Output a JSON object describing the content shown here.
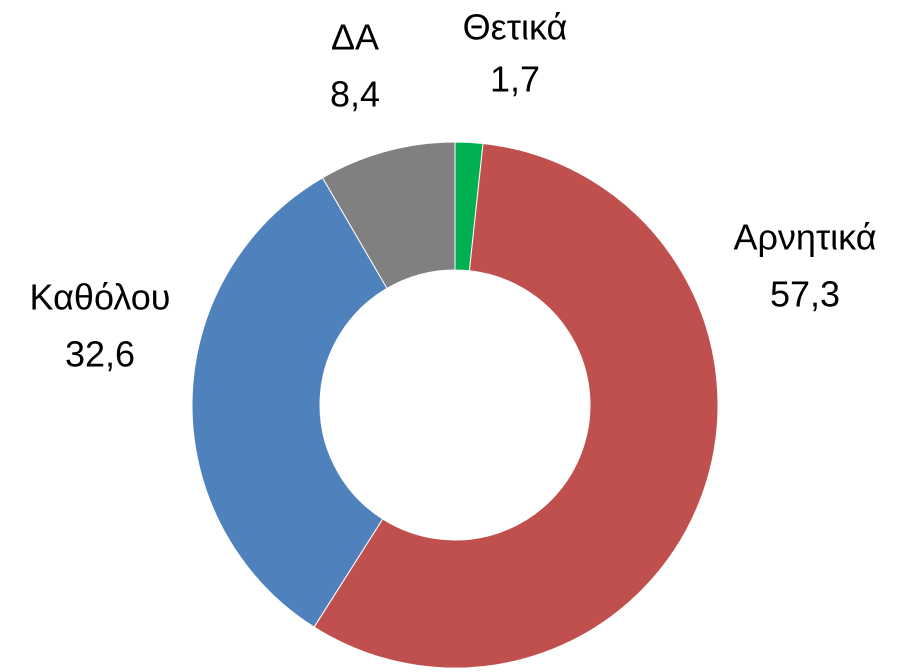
{
  "chart_data": {
    "type": "donut",
    "categories": [
      "Θετικά",
      "Αρνητικά",
      "Καθόλου",
      "ΔΑ"
    ],
    "values": [
      1.7,
      57.3,
      32.6,
      8.4
    ],
    "value_labels": [
      "1,7",
      "57,3",
      "32,6",
      "8,4"
    ],
    "colors": [
      "#00b050",
      "#c0504d",
      "#4f81bd",
      "#808080"
    ]
  }
}
